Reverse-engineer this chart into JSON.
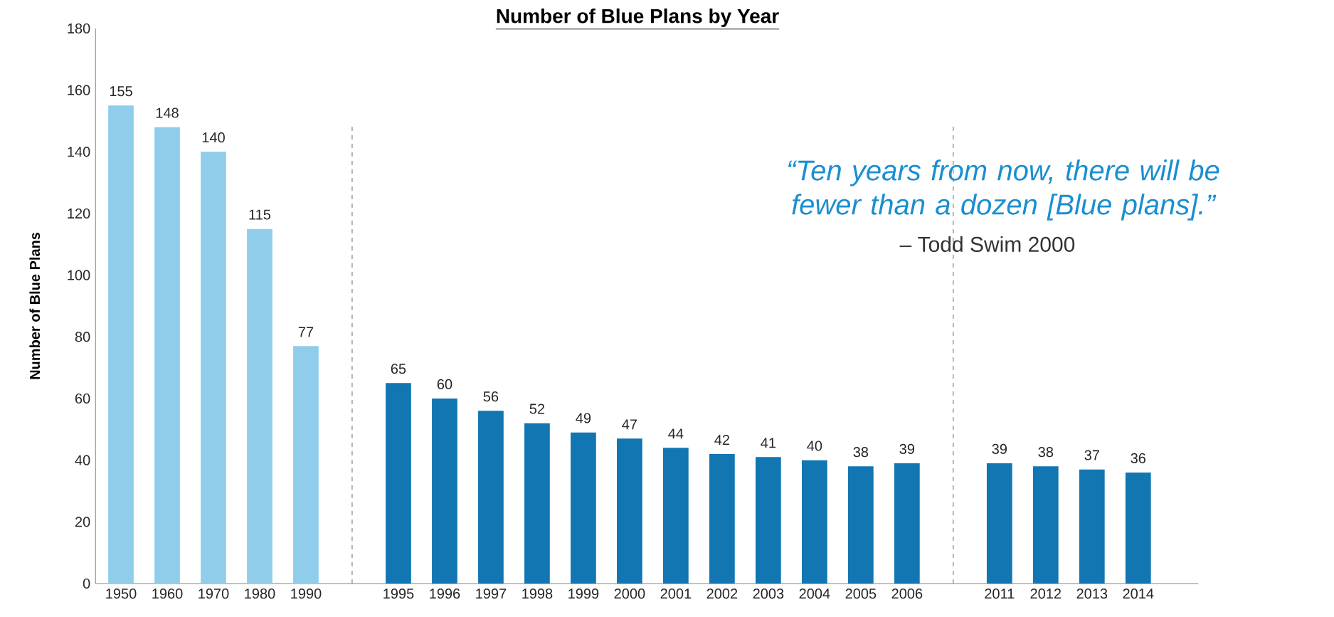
{
  "chart_data": {
    "type": "bar",
    "title": "Number of Blue Plans by Year",
    "ylabel": "Number of Blue Plans",
    "categories": [
      "1950",
      "1960",
      "1970",
      "1980",
      "1990",
      null,
      "1995",
      "1996",
      "1997",
      "1998",
      "1999",
      "2000",
      "2001",
      "2002",
      "2003",
      "2004",
      "2005",
      "2006",
      null,
      "2011",
      "2012",
      "2013",
      "2014"
    ],
    "values": [
      155,
      148,
      140,
      115,
      77,
      null,
      65,
      60,
      56,
      52,
      49,
      47,
      44,
      42,
      41,
      40,
      38,
      39,
      null,
      39,
      38,
      37,
      36
    ],
    "colors": [
      "#8fcdeb",
      "#8fcdeb",
      "#8fcdeb",
      "#8fcdeb",
      "#8fcdeb",
      null,
      "#1176b1",
      "#1176b1",
      "#1176b1",
      "#1176b1",
      "#1176b1",
      "#1176b1",
      "#1176b1",
      "#1176b1",
      "#1176b1",
      "#1176b1",
      "#1176b1",
      "#1176b1",
      null,
      "#1176b1",
      "#1176b1",
      "#1176b1",
      "#1176b1"
    ],
    "data_labels": true,
    "ylim": [
      0,
      180
    ],
    "yticks": [
      0,
      20,
      40,
      60,
      80,
      100,
      120,
      140,
      160,
      180
    ],
    "annotations": [
      "“Ten years from now, there will be fewer than a dozen [Blue plans].”",
      "– Todd Swim 2000"
    ]
  }
}
